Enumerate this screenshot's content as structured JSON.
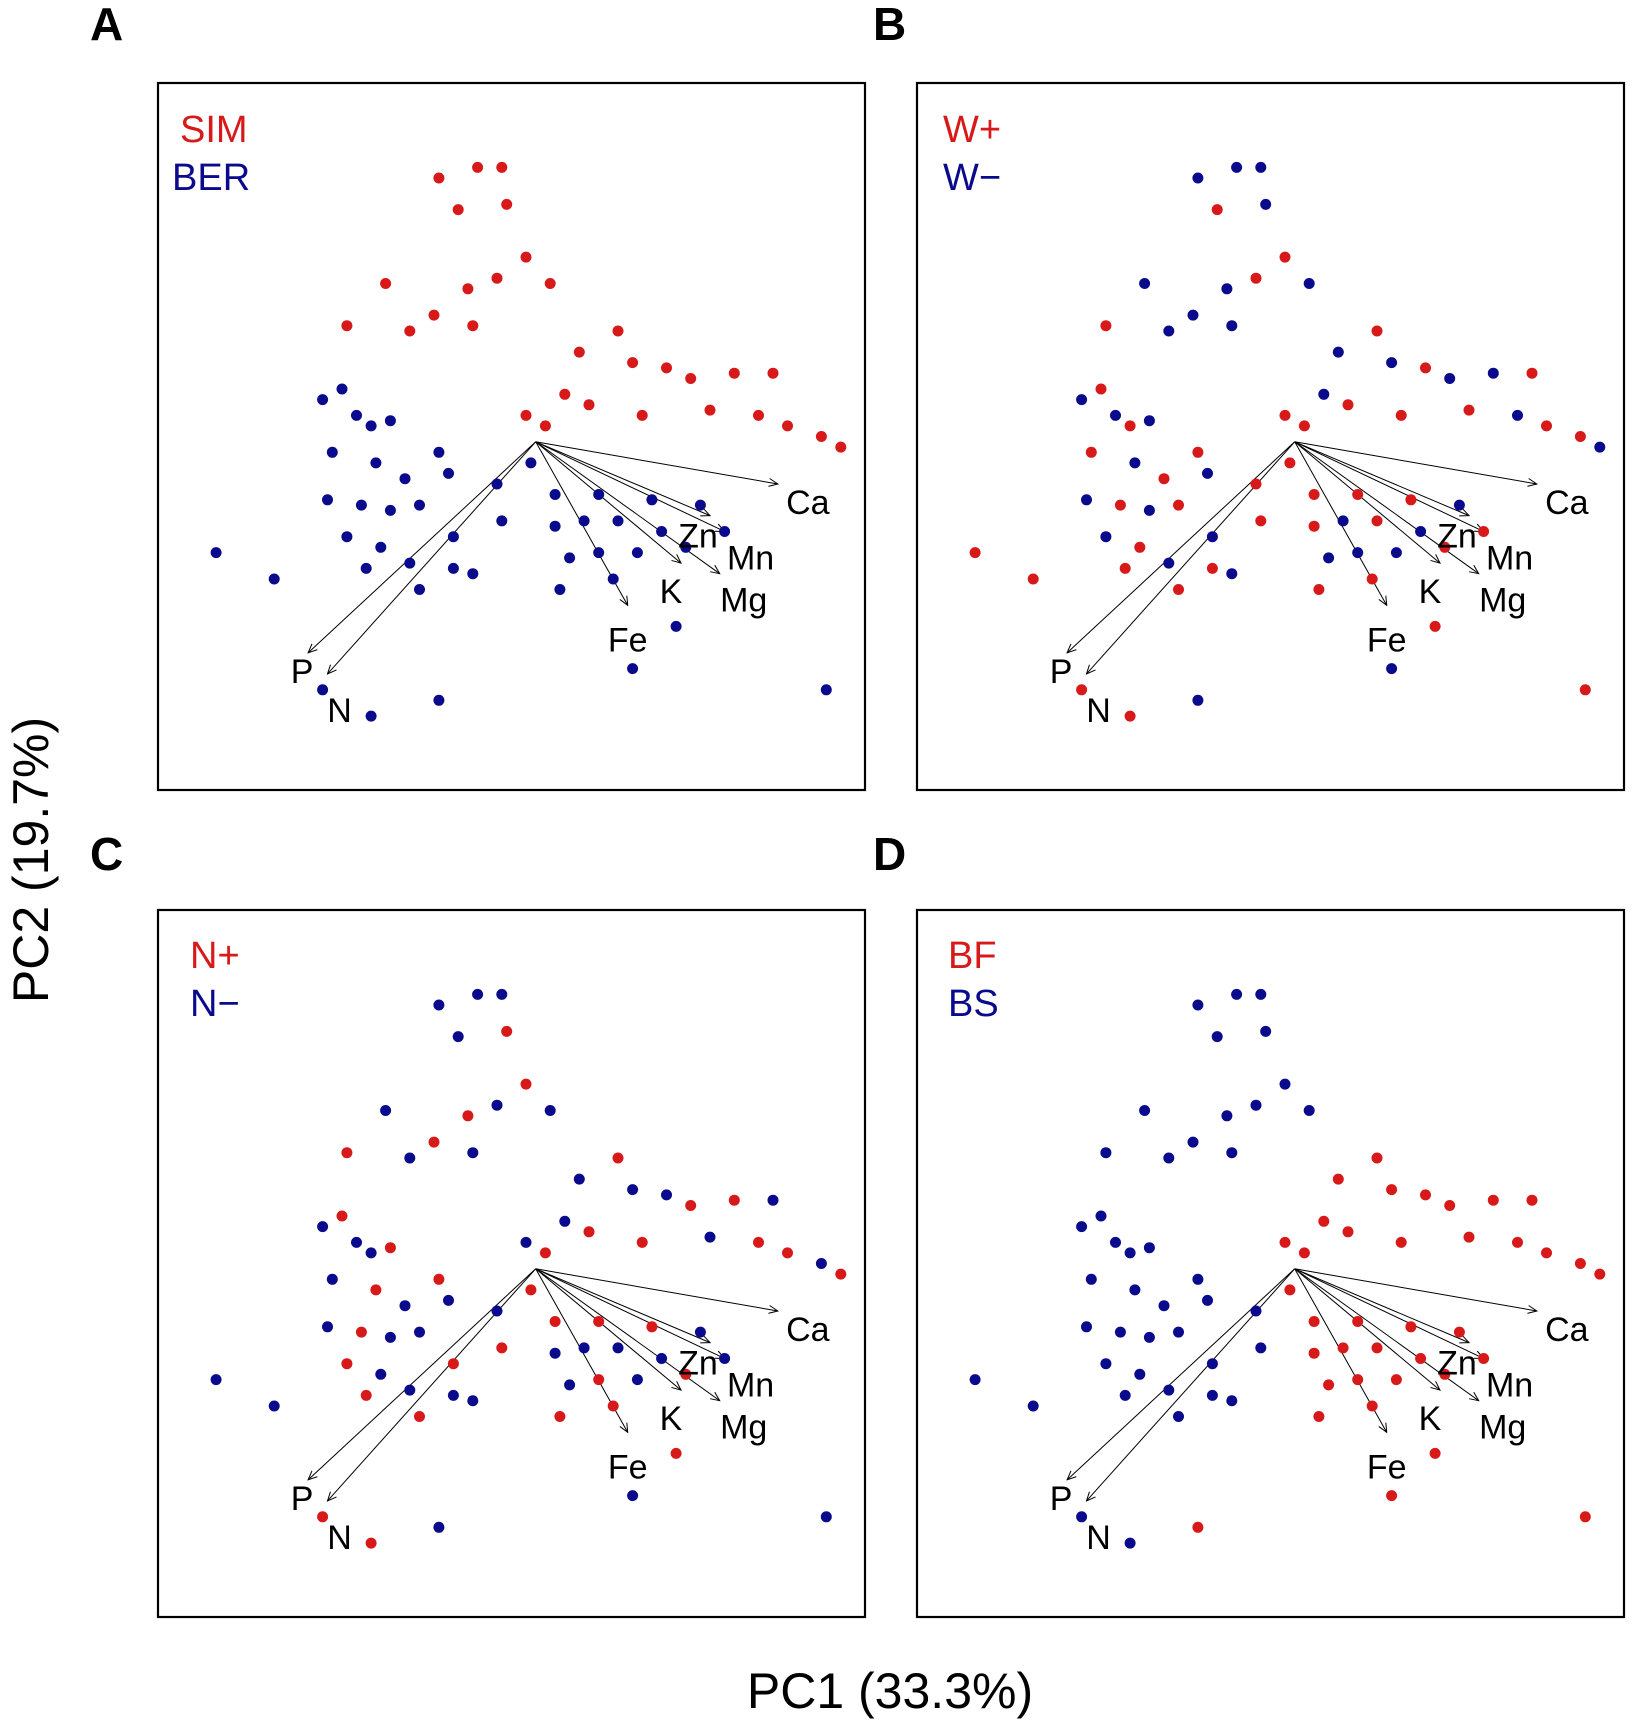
{
  "figure": {
    "x_axis_title": "PC1 (33.3%)",
    "y_axis_title": "PC2 (19.7%)"
  },
  "colors": {
    "group1": "#d81919",
    "group2": "#0a0a8c",
    "axis": "#000000"
  },
  "chart_data": {
    "type": "scatter",
    "subtype": "pca-biplot",
    "xlabel": "PC1 (33.3%)",
    "ylabel": "PC2 (19.7%)",
    "xlim": [
      -3.9,
      3.4
    ],
    "ylim": [
      -3.3,
      3.4
    ],
    "origin": [
      0,
      0
    ],
    "loadings": [
      {
        "label": "P",
        "x": -2.35,
        "y": -2.0
      },
      {
        "label": "N",
        "x": -2.15,
        "y": -2.2
      },
      {
        "label": "Fe",
        "x": 0.95,
        "y": -1.55
      },
      {
        "label": "K",
        "x": 1.5,
        "y": -1.15
      },
      {
        "label": "Mg",
        "x": 1.9,
        "y": -1.25
      },
      {
        "label": "Zn",
        "x": 1.8,
        "y": -0.7
      },
      {
        "label": "Mn",
        "x": 1.95,
        "y": -0.85
      },
      {
        "label": "Ca",
        "x": 2.5,
        "y": -0.4
      }
    ],
    "samples": [
      {
        "x": -3.3,
        "y": -1.05,
        "A": 0,
        "B": 1,
        "C": 0,
        "D": 0
      },
      {
        "x": -2.7,
        "y": -1.3,
        "A": 0,
        "B": 1,
        "C": 0,
        "D": 0
      },
      {
        "x": -1.7,
        "y": -2.6,
        "A": 0,
        "B": 1,
        "C": 1,
        "D": 0
      },
      {
        "x": -1.0,
        "y": -2.45,
        "A": 0,
        "B": 0,
        "C": 0,
        "D": 1
      },
      {
        "x": 1.0,
        "y": -2.15,
        "A": 0,
        "B": 0,
        "C": 0,
        "D": 1
      },
      {
        "x": 1.45,
        "y": -1.75,
        "A": 0,
        "B": 1,
        "C": 1,
        "D": 1
      },
      {
        "x": 3.0,
        "y": -2.35,
        "A": 0,
        "B": 1,
        "C": 0,
        "D": 1
      },
      {
        "x": -2.2,
        "y": -2.35,
        "A": 0,
        "B": 1,
        "C": 1,
        "D": 0
      },
      {
        "x": -0.8,
        "y": 2.2,
        "A": 1,
        "B": 1,
        "C": 0,
        "D": 0
      },
      {
        "x": -1.0,
        "y": 2.5,
        "A": 1,
        "B": 0,
        "C": 0,
        "D": 0
      },
      {
        "x": -0.6,
        "y": 2.6,
        "A": 1,
        "B": 0,
        "C": 0,
        "D": 0
      },
      {
        "x": -0.35,
        "y": 2.6,
        "A": 1,
        "B": 0,
        "C": 0,
        "D": 0
      },
      {
        "x": -0.3,
        "y": 2.25,
        "A": 1,
        "B": 0,
        "C": 1,
        "D": 0
      },
      {
        "x": -1.55,
        "y": 1.5,
        "A": 1,
        "B": 0,
        "C": 0,
        "D": 0
      },
      {
        "x": -1.95,
        "y": 1.1,
        "A": 1,
        "B": 1,
        "C": 1,
        "D": 0
      },
      {
        "x": -1.3,
        "y": 1.05,
        "A": 1,
        "B": 0,
        "C": 0,
        "D": 0
      },
      {
        "x": -1.05,
        "y": 1.2,
        "A": 1,
        "B": 0,
        "C": 1,
        "D": 0
      },
      {
        "x": -0.7,
        "y": 1.45,
        "A": 1,
        "B": 0,
        "C": 1,
        "D": 0
      },
      {
        "x": -0.65,
        "y": 1.1,
        "A": 1,
        "B": 0,
        "C": 0,
        "D": 0
      },
      {
        "x": -0.4,
        "y": 1.55,
        "A": 1,
        "B": 1,
        "C": 0,
        "D": 0
      },
      {
        "x": -0.1,
        "y": 1.75,
        "A": 1,
        "B": 1,
        "C": 1,
        "D": 0
      },
      {
        "x": 0.15,
        "y": 1.5,
        "A": 1,
        "B": 0,
        "C": 0,
        "D": 0
      },
      {
        "x": 0.45,
        "y": 0.85,
        "A": 1,
        "B": 0,
        "C": 0,
        "D": 1
      },
      {
        "x": 0.85,
        "y": 1.05,
        "A": 1,
        "B": 1,
        "C": 1,
        "D": 1
      },
      {
        "x": 1.0,
        "y": 0.75,
        "A": 1,
        "B": 0,
        "C": 0,
        "D": 1
      },
      {
        "x": 1.35,
        "y": 0.7,
        "A": 1,
        "B": 1,
        "C": 0,
        "D": 1
      },
      {
        "x": 1.6,
        "y": 0.6,
        "A": 1,
        "B": 0,
        "C": 1,
        "D": 1
      },
      {
        "x": 1.8,
        "y": 0.3,
        "A": 1,
        "B": 1,
        "C": 0,
        "D": 1
      },
      {
        "x": 2.05,
        "y": 0.65,
        "A": 1,
        "B": 0,
        "C": 1,
        "D": 1
      },
      {
        "x": 2.45,
        "y": 0.65,
        "A": 1,
        "B": 1,
        "C": 0,
        "D": 1
      },
      {
        "x": 2.3,
        "y": 0.25,
        "A": 1,
        "B": 0,
        "C": 1,
        "D": 1
      },
      {
        "x": 2.6,
        "y": 0.15,
        "A": 1,
        "B": 1,
        "C": 1,
        "D": 1
      },
      {
        "x": 2.95,
        "y": 0.05,
        "A": 1,
        "B": 1,
        "C": 0,
        "D": 1
      },
      {
        "x": 3.15,
        "y": -0.05,
        "A": 1,
        "B": 0,
        "C": 1,
        "D": 1
      },
      {
        "x": -0.1,
        "y": 0.25,
        "A": 1,
        "B": 1,
        "C": 0,
        "D": 1
      },
      {
        "x": 0.1,
        "y": 0.15,
        "A": 1,
        "B": 1,
        "C": 1,
        "D": 1
      },
      {
        "x": 0.3,
        "y": 0.45,
        "A": 1,
        "B": 0,
        "C": 0,
        "D": 1
      },
      {
        "x": 0.55,
        "y": 0.35,
        "A": 1,
        "B": 1,
        "C": 1,
        "D": 1
      },
      {
        "x": 1.1,
        "y": 0.25,
        "A": 1,
        "B": 1,
        "C": 1,
        "D": 1
      },
      {
        "x": -2.2,
        "y": 0.4,
        "A": 0,
        "B": 0,
        "C": 0,
        "D": 0
      },
      {
        "x": -2.0,
        "y": 0.5,
        "A": 0,
        "B": 1,
        "C": 1,
        "D": 0
      },
      {
        "x": -1.85,
        "y": 0.25,
        "A": 0,
        "B": 0,
        "C": 0,
        "D": 0
      },
      {
        "x": -1.7,
        "y": 0.15,
        "A": 0,
        "B": 1,
        "C": 0,
        "D": 0
      },
      {
        "x": -1.5,
        "y": 0.2,
        "A": 0,
        "B": 0,
        "C": 1,
        "D": 0
      },
      {
        "x": -2.1,
        "y": -0.1,
        "A": 0,
        "B": 1,
        "C": 0,
        "D": 0
      },
      {
        "x": -1.65,
        "y": -0.2,
        "A": 0,
        "B": 0,
        "C": 1,
        "D": 0
      },
      {
        "x": -1.35,
        "y": -0.35,
        "A": 0,
        "B": 1,
        "C": 0,
        "D": 0
      },
      {
        "x": -2.15,
        "y": -0.55,
        "A": 0,
        "B": 0,
        "C": 0,
        "D": 0
      },
      {
        "x": -1.8,
        "y": -0.6,
        "A": 0,
        "B": 1,
        "C": 1,
        "D": 0
      },
      {
        "x": -1.5,
        "y": -0.65,
        "A": 0,
        "B": 0,
        "C": 0,
        "D": 0
      },
      {
        "x": -1.2,
        "y": -0.6,
        "A": 0,
        "B": 1,
        "C": 0,
        "D": 0
      },
      {
        "x": -1.95,
        "y": -0.9,
        "A": 0,
        "B": 0,
        "C": 1,
        "D": 0
      },
      {
        "x": -1.6,
        "y": -1.0,
        "A": 0,
        "B": 1,
        "C": 0,
        "D": 0
      },
      {
        "x": -1.75,
        "y": -1.2,
        "A": 0,
        "B": 1,
        "C": 1,
        "D": 0
      },
      {
        "x": -1.3,
        "y": -1.15,
        "A": 0,
        "B": 0,
        "C": 0,
        "D": 0
      },
      {
        "x": -0.85,
        "y": -0.9,
        "A": 0,
        "B": 0,
        "C": 1,
        "D": 0
      },
      {
        "x": -0.85,
        "y": -1.2,
        "A": 0,
        "B": 1,
        "C": 0,
        "D": 0
      },
      {
        "x": -0.65,
        "y": -1.25,
        "A": 0,
        "B": 0,
        "C": 0,
        "D": 0
      },
      {
        "x": -1.2,
        "y": -1.4,
        "A": 0,
        "B": 1,
        "C": 1,
        "D": 0
      },
      {
        "x": -0.4,
        "y": -0.4,
        "A": 0,
        "B": 1,
        "C": 0,
        "D": 0
      },
      {
        "x": -0.35,
        "y": -0.75,
        "A": 0,
        "B": 1,
        "C": 1,
        "D": 0
      },
      {
        "x": -0.9,
        "y": -0.3,
        "A": 0,
        "B": 0,
        "C": 0,
        "D": 0
      },
      {
        "x": -1.0,
        "y": -0.1,
        "A": 0,
        "B": 1,
        "C": 1,
        "D": 0
      },
      {
        "x": 0.2,
        "y": -0.5,
        "A": 0,
        "B": 1,
        "C": 1,
        "D": 1
      },
      {
        "x": 0.2,
        "y": -0.8,
        "A": 0,
        "B": 1,
        "C": 0,
        "D": 1
      },
      {
        "x": 0.5,
        "y": -0.75,
        "A": 0,
        "B": 0,
        "C": 0,
        "D": 1
      },
      {
        "x": 0.65,
        "y": -0.5,
        "A": 0,
        "B": 1,
        "C": 1,
        "D": 1
      },
      {
        "x": 0.65,
        "y": -1.05,
        "A": 0,
        "B": 0,
        "C": 1,
        "D": 1
      },
      {
        "x": 0.85,
        "y": -0.75,
        "A": 0,
        "B": 1,
        "C": 0,
        "D": 1
      },
      {
        "x": 0.8,
        "y": -1.3,
        "A": 0,
        "B": 1,
        "C": 1,
        "D": 1
      },
      {
        "x": 1.05,
        "y": -1.05,
        "A": 0,
        "B": 0,
        "C": 0,
        "D": 1
      },
      {
        "x": 1.2,
        "y": -0.55,
        "A": 0,
        "B": 1,
        "C": 1,
        "D": 1
      },
      {
        "x": 1.3,
        "y": -0.85,
        "A": 0,
        "B": 0,
        "C": 0,
        "D": 1
      },
      {
        "x": 1.55,
        "y": -1.0,
        "A": 0,
        "B": 1,
        "C": 1,
        "D": 1
      },
      {
        "x": 0.35,
        "y": -1.1,
        "A": 0,
        "B": 0,
        "C": 0,
        "D": 1
      },
      {
        "x": 0.25,
        "y": -1.4,
        "A": 0,
        "B": 1,
        "C": 1,
        "D": 1
      },
      {
        "x": 1.7,
        "y": -0.6,
        "A": 0,
        "B": 0,
        "C": 0,
        "D": 1
      },
      {
        "x": -0.05,
        "y": -0.2,
        "A": 0,
        "B": 1,
        "C": 1,
        "D": 1
      },
      {
        "x": 1.95,
        "y": -0.85,
        "A": 0,
        "B": 1,
        "C": 0,
        "D": 1
      }
    ]
  },
  "panels": [
    {
      "letter": "A",
      "legend": [
        "SIM",
        "BER"
      ]
    },
    {
      "letter": "B",
      "legend": [
        "W+",
        "W−"
      ]
    },
    {
      "letter": "C",
      "legend": [
        "N+",
        "N−"
      ]
    },
    {
      "letter": "D",
      "legend": [
        "BF",
        "BS"
      ]
    }
  ]
}
